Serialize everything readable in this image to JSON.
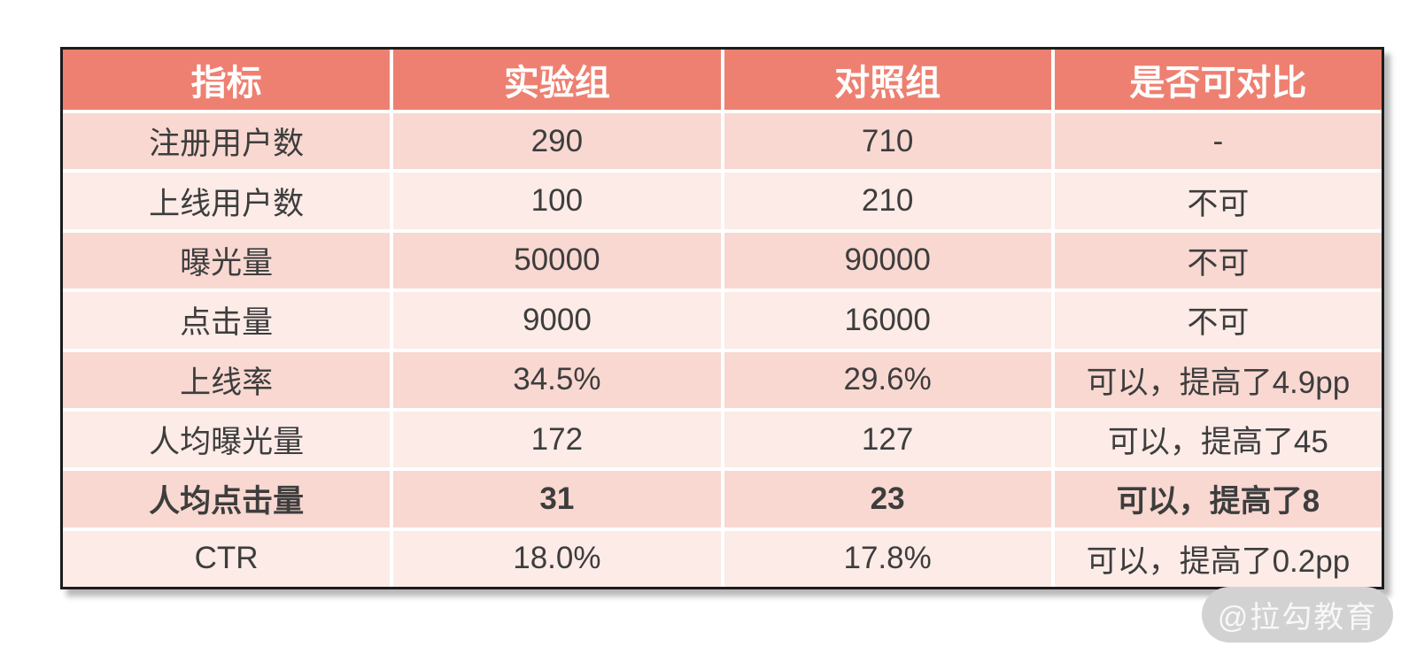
{
  "chart_data": {
    "type": "table",
    "title": "",
    "columns": [
      "指标",
      "实验组",
      "对照组",
      "是否可对比"
    ],
    "rows": [
      {
        "metric": "注册用户数",
        "experiment": "290",
        "control": "710",
        "comparable": "-",
        "bold": false
      },
      {
        "metric": "上线用户数",
        "experiment": "100",
        "control": "210",
        "comparable": "不可",
        "bold": false
      },
      {
        "metric": "曝光量",
        "experiment": "50000",
        "control": "90000",
        "comparable": "不可",
        "bold": false
      },
      {
        "metric": "点击量",
        "experiment": "9000",
        "control": "16000",
        "comparable": "不可",
        "bold": false
      },
      {
        "metric": "上线率",
        "experiment": "34.5%",
        "control": "29.6%",
        "comparable": "可以，提高了4.9pp",
        "bold": false
      },
      {
        "metric": "人均曝光量",
        "experiment": "172",
        "control": "127",
        "comparable": "可以，提高了45",
        "bold": false
      },
      {
        "metric": "人均点击量",
        "experiment": "31",
        "control": "23",
        "comparable": "可以，提高了8",
        "bold": true
      },
      {
        "metric": "CTR",
        "experiment": "18.0%",
        "control": "17.8%",
        "comparable": "可以，提高了0.2pp",
        "bold": false
      }
    ]
  },
  "watermark": {
    "label": "@拉勾教育"
  },
  "colors": {
    "header_bg": "#EE8071",
    "header_text": "#FFFFFF",
    "row_odd_bg": "#F8D8D1",
    "row_even_bg": "#FCEBE7",
    "cell_text": "#3D3D3D",
    "border": "#1C1C1C",
    "watermark_bg": "#D2D2D2",
    "watermark_text": "#FFFFFF"
  }
}
